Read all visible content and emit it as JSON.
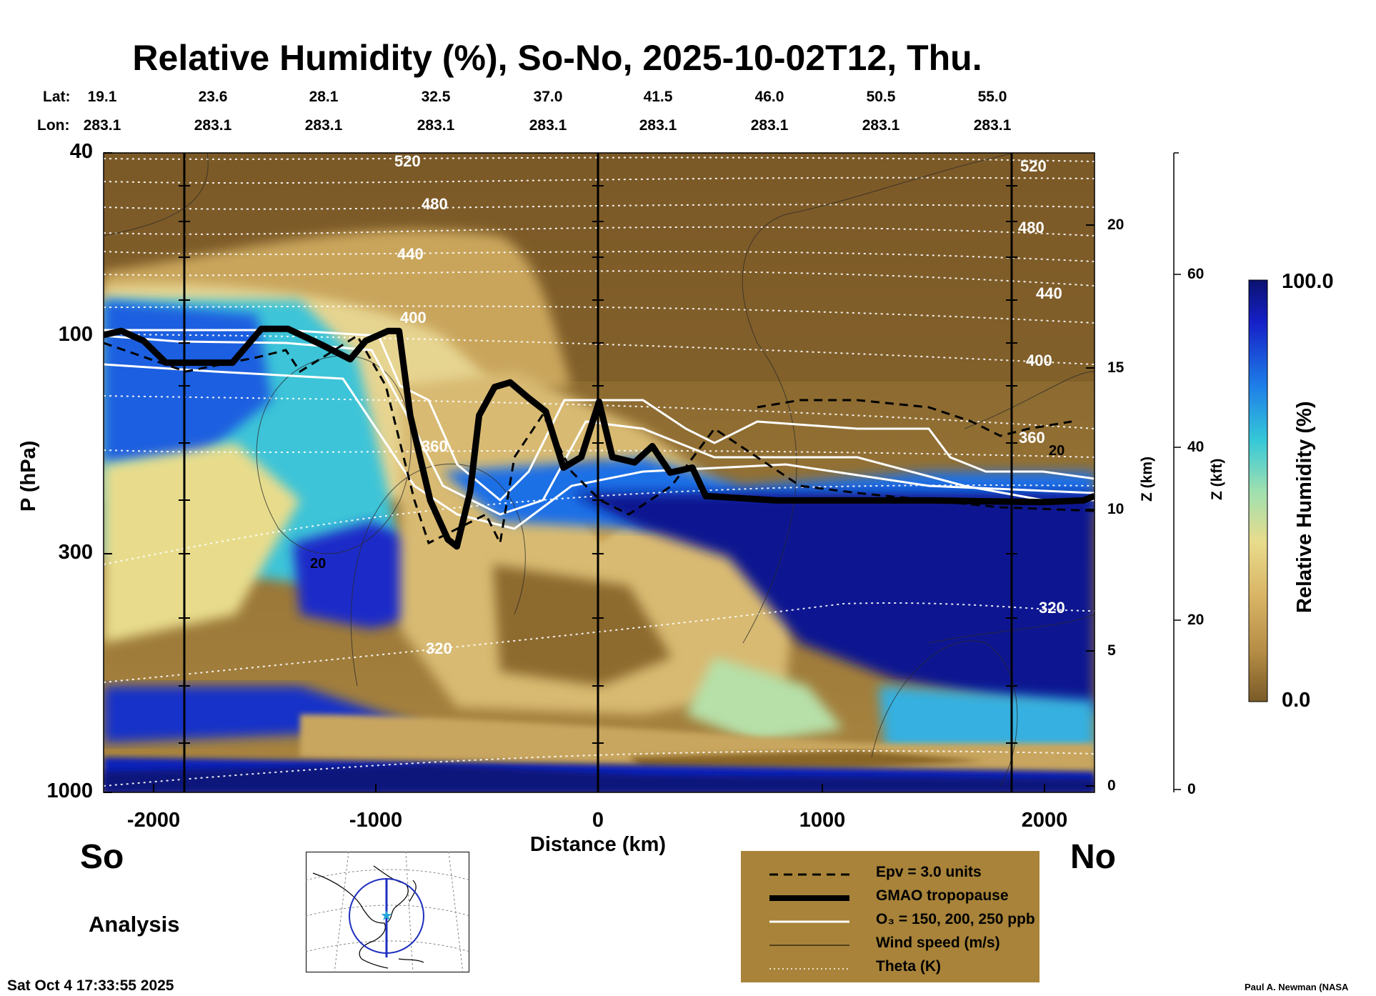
{
  "title": "Relative Humidity (%), So-No, 2025-10-02T12, Thu.",
  "lat_label": "Lat:",
  "lon_label": "Lon:",
  "lat_values": [
    "19.1",
    "23.6",
    "28.1",
    "32.5",
    "37.0",
    "41.5",
    "46.0",
    "50.5",
    "55.0"
  ],
  "lon_values": [
    "283.1",
    "283.1",
    "283.1",
    "283.1",
    "283.1",
    "283.1",
    "283.1",
    "283.1",
    "283.1"
  ],
  "chart_data": {
    "type": "heatmap",
    "title": "Relative Humidity (%), So-No, 2025-10-02T12, Thu.",
    "xlabel": "Distance (km)",
    "ylabel": "P (hPa)",
    "xlim": [
      -2230,
      2230
    ],
    "ylim_pressure": [
      1000,
      40
    ],
    "y_scale": "log",
    "x_ticks": [
      "-2000",
      "-1000",
      "0",
      "1000",
      "2000"
    ],
    "y_ticks": [
      "40",
      "100",
      "300",
      "1000"
    ],
    "z_km_label": "Z (km)",
    "z_km_ticks": [
      "20",
      "15",
      "10",
      "5",
      "0"
    ],
    "z_kft_label": "Z (kft)",
    "z_kft_ticks": [
      "60",
      "40",
      "20",
      "0"
    ],
    "colorbar": {
      "label": "Relative Humidity (%)",
      "max": "100.0",
      "min": "0.0"
    },
    "theta_labels": [
      "520",
      "480",
      "440",
      "400",
      "360",
      "320",
      "520",
      "480",
      "440",
      "400",
      "360",
      "320"
    ],
    "wind_labels": [
      "20",
      "20"
    ],
    "tropopause": [
      [
        -2230,
        100
      ],
      [
        -2150,
        98
      ],
      [
        -2050,
        103
      ],
      [
        -1950,
        115
      ],
      [
        -1850,
        115
      ],
      [
        -1650,
        115
      ],
      [
        -1520,
        97
      ],
      [
        -1400,
        97
      ],
      [
        -1250,
        105
      ],
      [
        -1120,
        113
      ],
      [
        -1050,
        103
      ],
      [
        -950,
        98
      ],
      [
        -900,
        98
      ],
      [
        -850,
        150
      ],
      [
        -760,
        230
      ],
      [
        -680,
        280
      ],
      [
        -640,
        290
      ],
      [
        -580,
        220
      ],
      [
        -540,
        150
      ],
      [
        -470,
        130
      ],
      [
        -400,
        127
      ],
      [
        -320,
        137
      ],
      [
        -240,
        147
      ],
      [
        -160,
        195
      ],
      [
        -80,
        185
      ],
      [
        0,
        140
      ],
      [
        60,
        185
      ],
      [
        160,
        190
      ],
      [
        240,
        175
      ],
      [
        320,
        200
      ],
      [
        420,
        195
      ],
      [
        480,
        225
      ],
      [
        800,
        230
      ],
      [
        1500,
        230
      ],
      [
        2000,
        232
      ],
      [
        2180,
        230
      ],
      [
        2230,
        225
      ]
    ],
    "legend": [
      {
        "style": "dashed",
        "label": "Epv = 3.0 units"
      },
      {
        "style": "thick",
        "label": "GMAO tropopause"
      },
      {
        "style": "white",
        "label": "O₃ = 150, 200, 250 ppb"
      },
      {
        "style": "thin",
        "label": "Wind speed (m/s)"
      },
      {
        "style": "dotted",
        "label": "Theta (K)"
      }
    ]
  },
  "south_label": "So",
  "north_label": "No",
  "analysis_label": "Analysis",
  "timestamp": "Sat Oct  4 17:33:55 2025",
  "credit": "Paul A. Newman (NASA",
  "colors": {
    "dark_brown": "#7b5a26",
    "tan": "#c8a25a",
    "dark_blue": "#0d1a8c",
    "cyan": "#35c2d8",
    "legend_bg": "#a88339"
  }
}
